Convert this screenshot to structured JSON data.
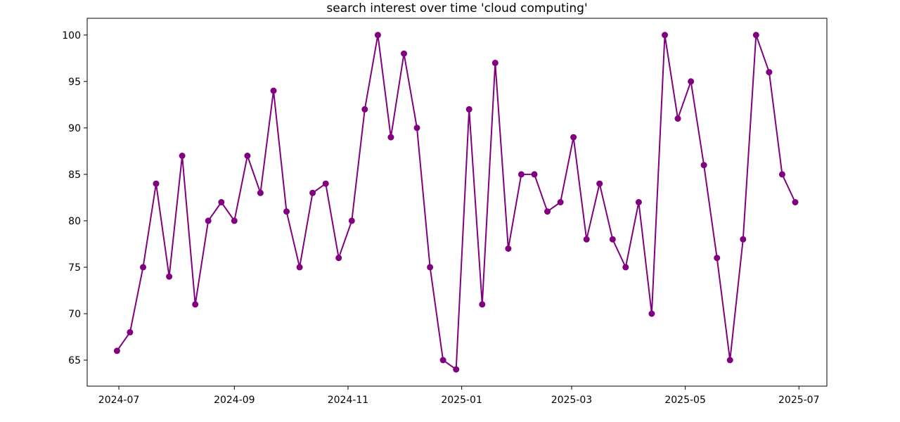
{
  "chart_data": {
    "type": "line",
    "title": "search interest over time 'cloud computing'",
    "xlabel": "",
    "ylabel": "",
    "x_ticks": [
      "2024-07",
      "2024-09",
      "2024-11",
      "2025-01",
      "2025-03",
      "2025-05",
      "2025-07"
    ],
    "y_ticks": [
      65,
      70,
      75,
      80,
      85,
      90,
      95,
      100
    ],
    "xlim": [
      "2024-06-14",
      "2025-07-16"
    ],
    "ylim": [
      62.2,
      101.8
    ],
    "grid": false,
    "marker": "circle",
    "colors": {
      "series": "#800080",
      "axes": "#000000",
      "background": "#ffffff"
    },
    "series": [
      {
        "x": [
          "2024-06-30",
          "2024-07-07",
          "2024-07-14",
          "2024-07-21",
          "2024-07-28",
          "2024-08-04",
          "2024-08-11",
          "2024-08-18",
          "2024-08-25",
          "2024-09-01",
          "2024-09-08",
          "2024-09-15",
          "2024-09-22",
          "2024-09-29",
          "2024-10-06",
          "2024-10-13",
          "2024-10-20",
          "2024-10-27",
          "2024-11-03",
          "2024-11-10",
          "2024-11-17",
          "2024-11-24",
          "2024-12-01",
          "2024-12-08",
          "2024-12-15",
          "2024-12-22",
          "2024-12-29",
          "2025-01-05",
          "2025-01-12",
          "2025-01-19",
          "2025-01-26",
          "2025-02-02",
          "2025-02-09",
          "2025-02-16",
          "2025-02-23",
          "2025-03-02",
          "2025-03-09",
          "2025-03-16",
          "2025-03-23",
          "2025-03-30",
          "2025-04-06",
          "2025-04-13",
          "2025-04-20",
          "2025-04-27",
          "2025-05-04",
          "2025-05-11",
          "2025-05-18",
          "2025-05-25",
          "2025-06-01",
          "2025-06-08",
          "2025-06-15",
          "2025-06-22",
          "2025-06-29"
        ],
        "values": [
          66,
          68,
          75,
          84,
          74,
          87,
          71,
          80,
          82,
          80,
          87,
          83,
          94,
          81,
          75,
          83,
          84,
          76,
          80,
          92,
          100,
          89,
          98,
          90,
          75,
          65,
          64,
          92,
          71,
          97,
          77,
          85,
          85,
          81,
          82,
          89,
          78,
          84,
          78,
          75,
          82,
          70,
          100,
          91,
          95,
          86,
          76,
          65,
          78,
          100,
          96,
          85,
          82
        ]
      }
    ]
  }
}
